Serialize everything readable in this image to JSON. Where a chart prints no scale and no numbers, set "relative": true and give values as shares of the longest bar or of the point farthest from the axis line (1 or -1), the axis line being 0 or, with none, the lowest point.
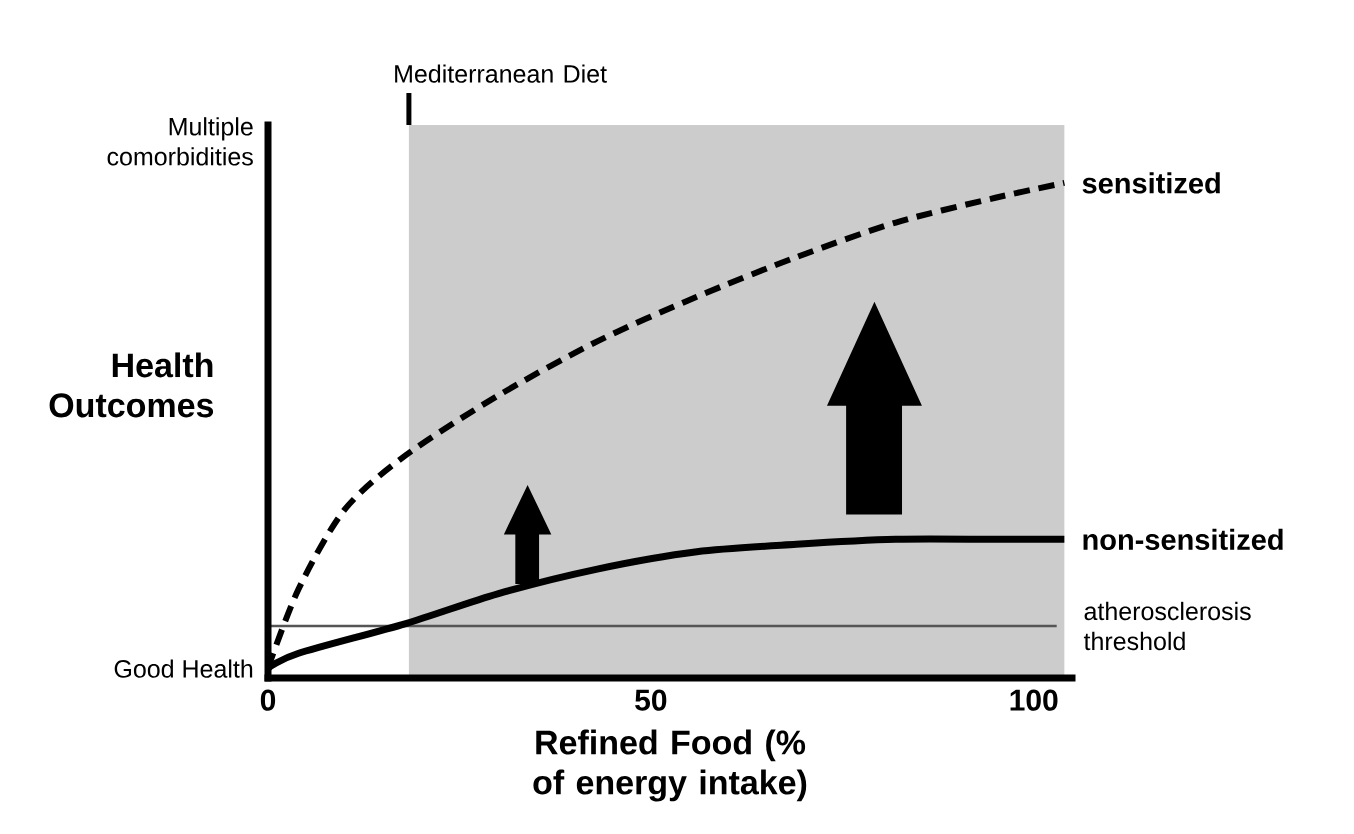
{
  "chart_data": {
    "type": "line",
    "relative": true,
    "xlabel": "Refined Food (% of energy intake)",
    "ylabel": "Health Outcomes",
    "xlim": [
      0,
      105
    ],
    "xticks": [
      0,
      50,
      100
    ],
    "grid": false,
    "series": [
      {
        "name": "sensitized",
        "color": "#000000",
        "line_style": "dashed",
        "x": [
          0,
          4,
          10,
          18,
          30,
          43,
          56,
          69,
          82,
          95,
          104
        ],
        "values": [
          0.02,
          0.18,
          0.34,
          0.45,
          0.57,
          0.68,
          0.77,
          0.85,
          0.92,
          0.97,
          1.0
        ]
      },
      {
        "name": "non-sensitized",
        "color": "#000000",
        "line_style": "solid",
        "x": [
          0,
          4,
          18,
          30,
          43,
          56,
          69,
          82,
          95,
          104
        ],
        "values": [
          0.02,
          0.05,
          0.11,
          0.17,
          0.22,
          0.255,
          0.27,
          0.28,
          0.28,
          0.28
        ]
      }
    ],
    "ref_lines": [
      {
        "axis": "y",
        "value": 0.105,
        "label": "atherosclerosis threshold",
        "color": "#555555"
      }
    ],
    "bands": [
      {
        "axis": "x",
        "from": 18.4,
        "to": 104,
        "label": "Mediterranean Diet",
        "color": "#cccccc"
      }
    ],
    "annotations": [
      "Multiple comorbidities",
      "Good Health"
    ]
  }
}
